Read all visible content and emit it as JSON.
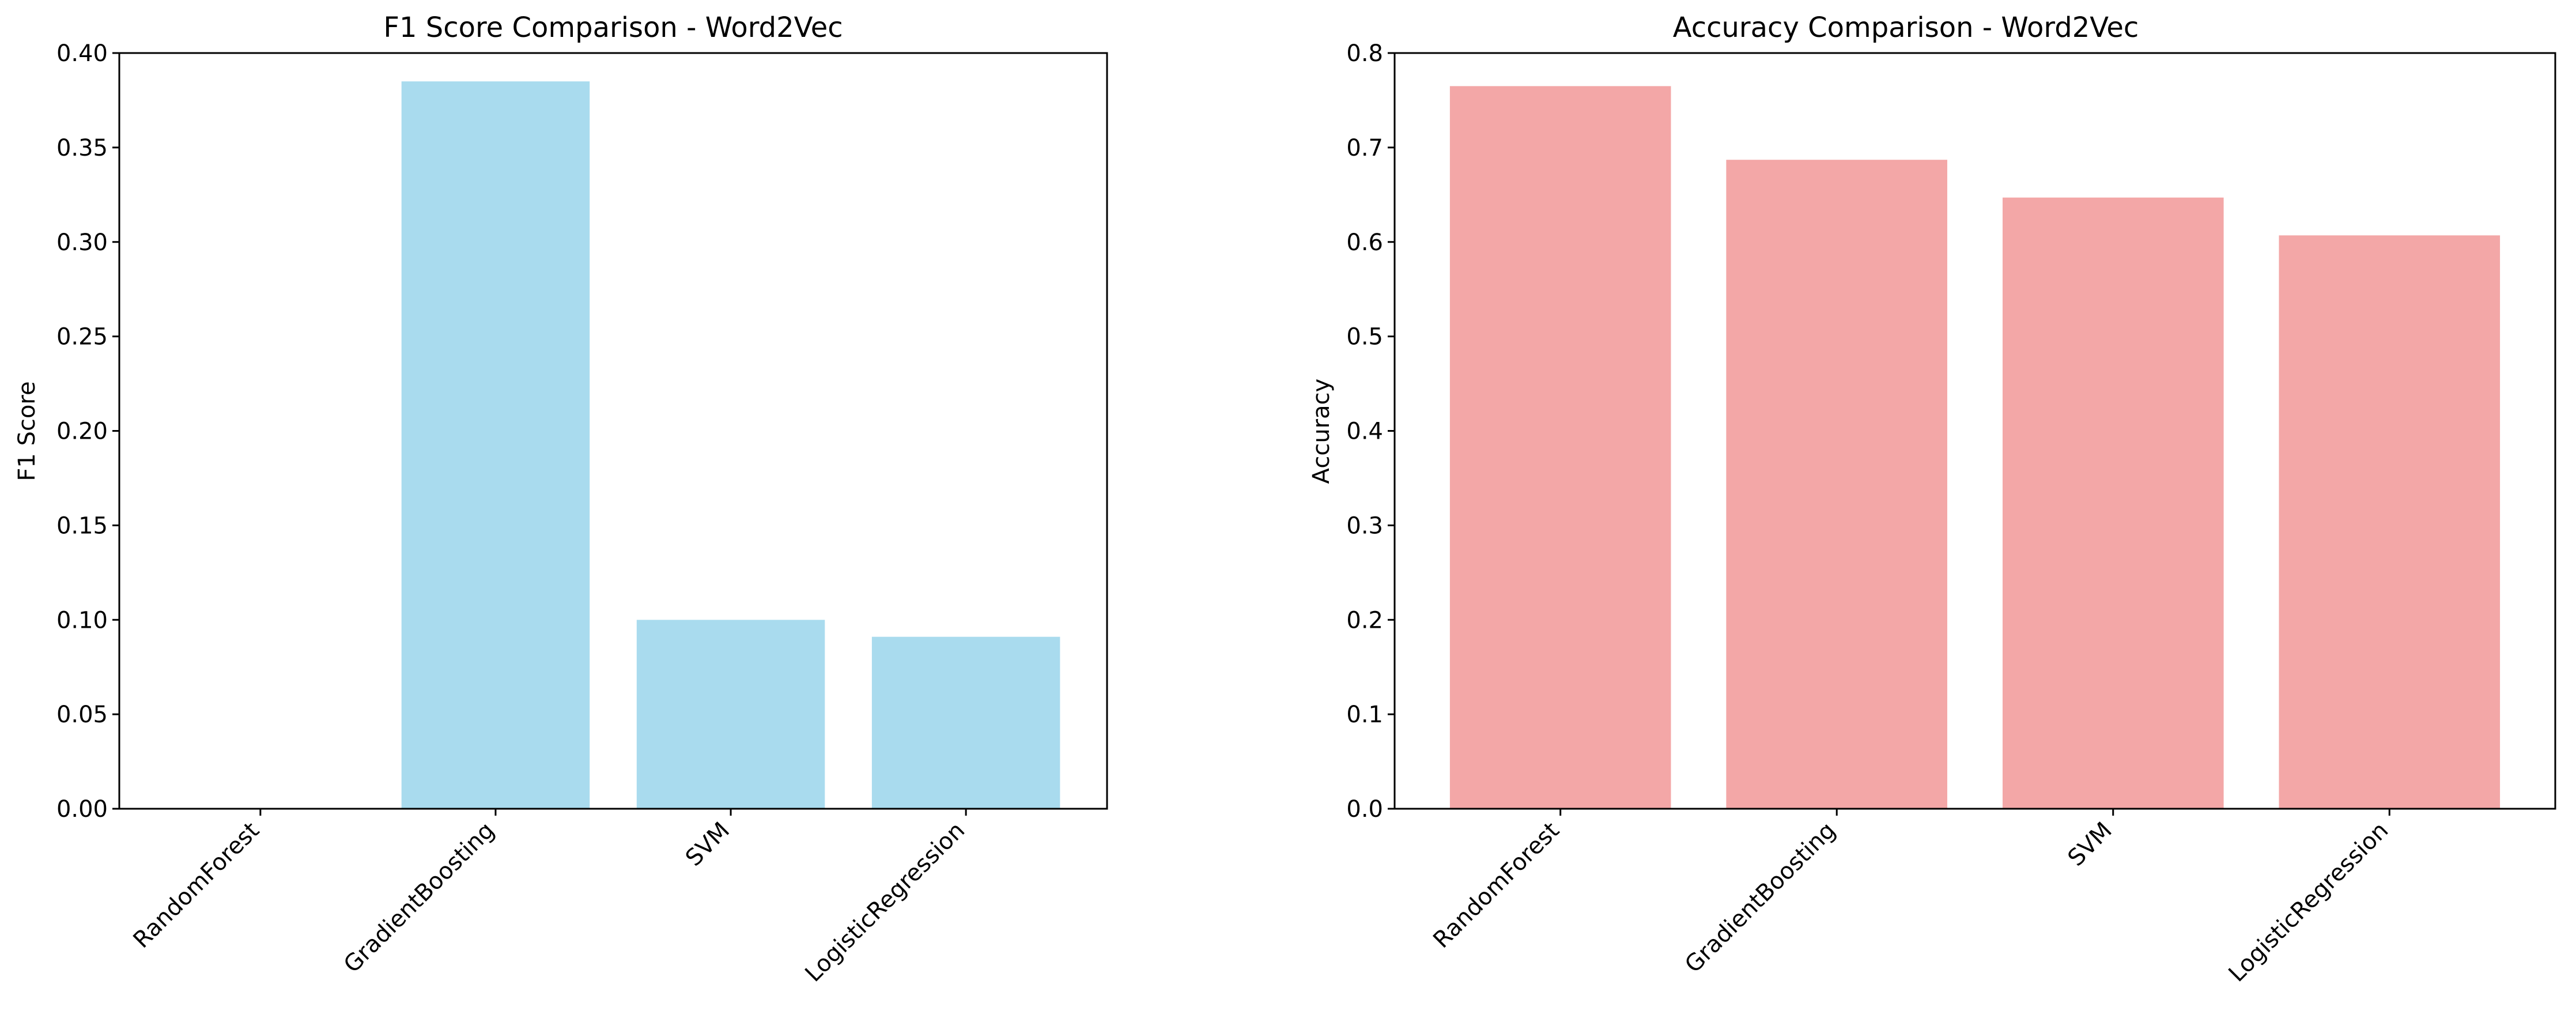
{
  "chart_data": [
    {
      "type": "bar",
      "title": "F1 Score Comparison - Word2Vec",
      "xlabel": "",
      "ylabel": "F1 Score",
      "categories": [
        "RandomForest",
        "GradientBoosting",
        "SVM",
        "LogisticRegression"
      ],
      "values": [
        0.0,
        0.385,
        0.1,
        0.091
      ],
      "ylim": [
        0,
        0.4
      ],
      "yticks": [
        "0.00",
        "0.05",
        "0.10",
        "0.15",
        "0.20",
        "0.25",
        "0.30",
        "0.35",
        "0.40"
      ],
      "bar_color": "#a9dbee",
      "grid": false,
      "legend": "none"
    },
    {
      "type": "bar",
      "title": "Accuracy Comparison - Word2Vec",
      "xlabel": "",
      "ylabel": "Accuracy",
      "categories": [
        "RandomForest",
        "GradientBoosting",
        "SVM",
        "LogisticRegression"
      ],
      "values": [
        0.765,
        0.687,
        0.647,
        0.607
      ],
      "ylim": [
        0,
        0.8
      ],
      "yticks": [
        "0.0",
        "0.1",
        "0.2",
        "0.3",
        "0.4",
        "0.5",
        "0.6",
        "0.7",
        "0.8"
      ],
      "bar_color": "#f3a7a7",
      "grid": false,
      "legend": "none"
    }
  ]
}
